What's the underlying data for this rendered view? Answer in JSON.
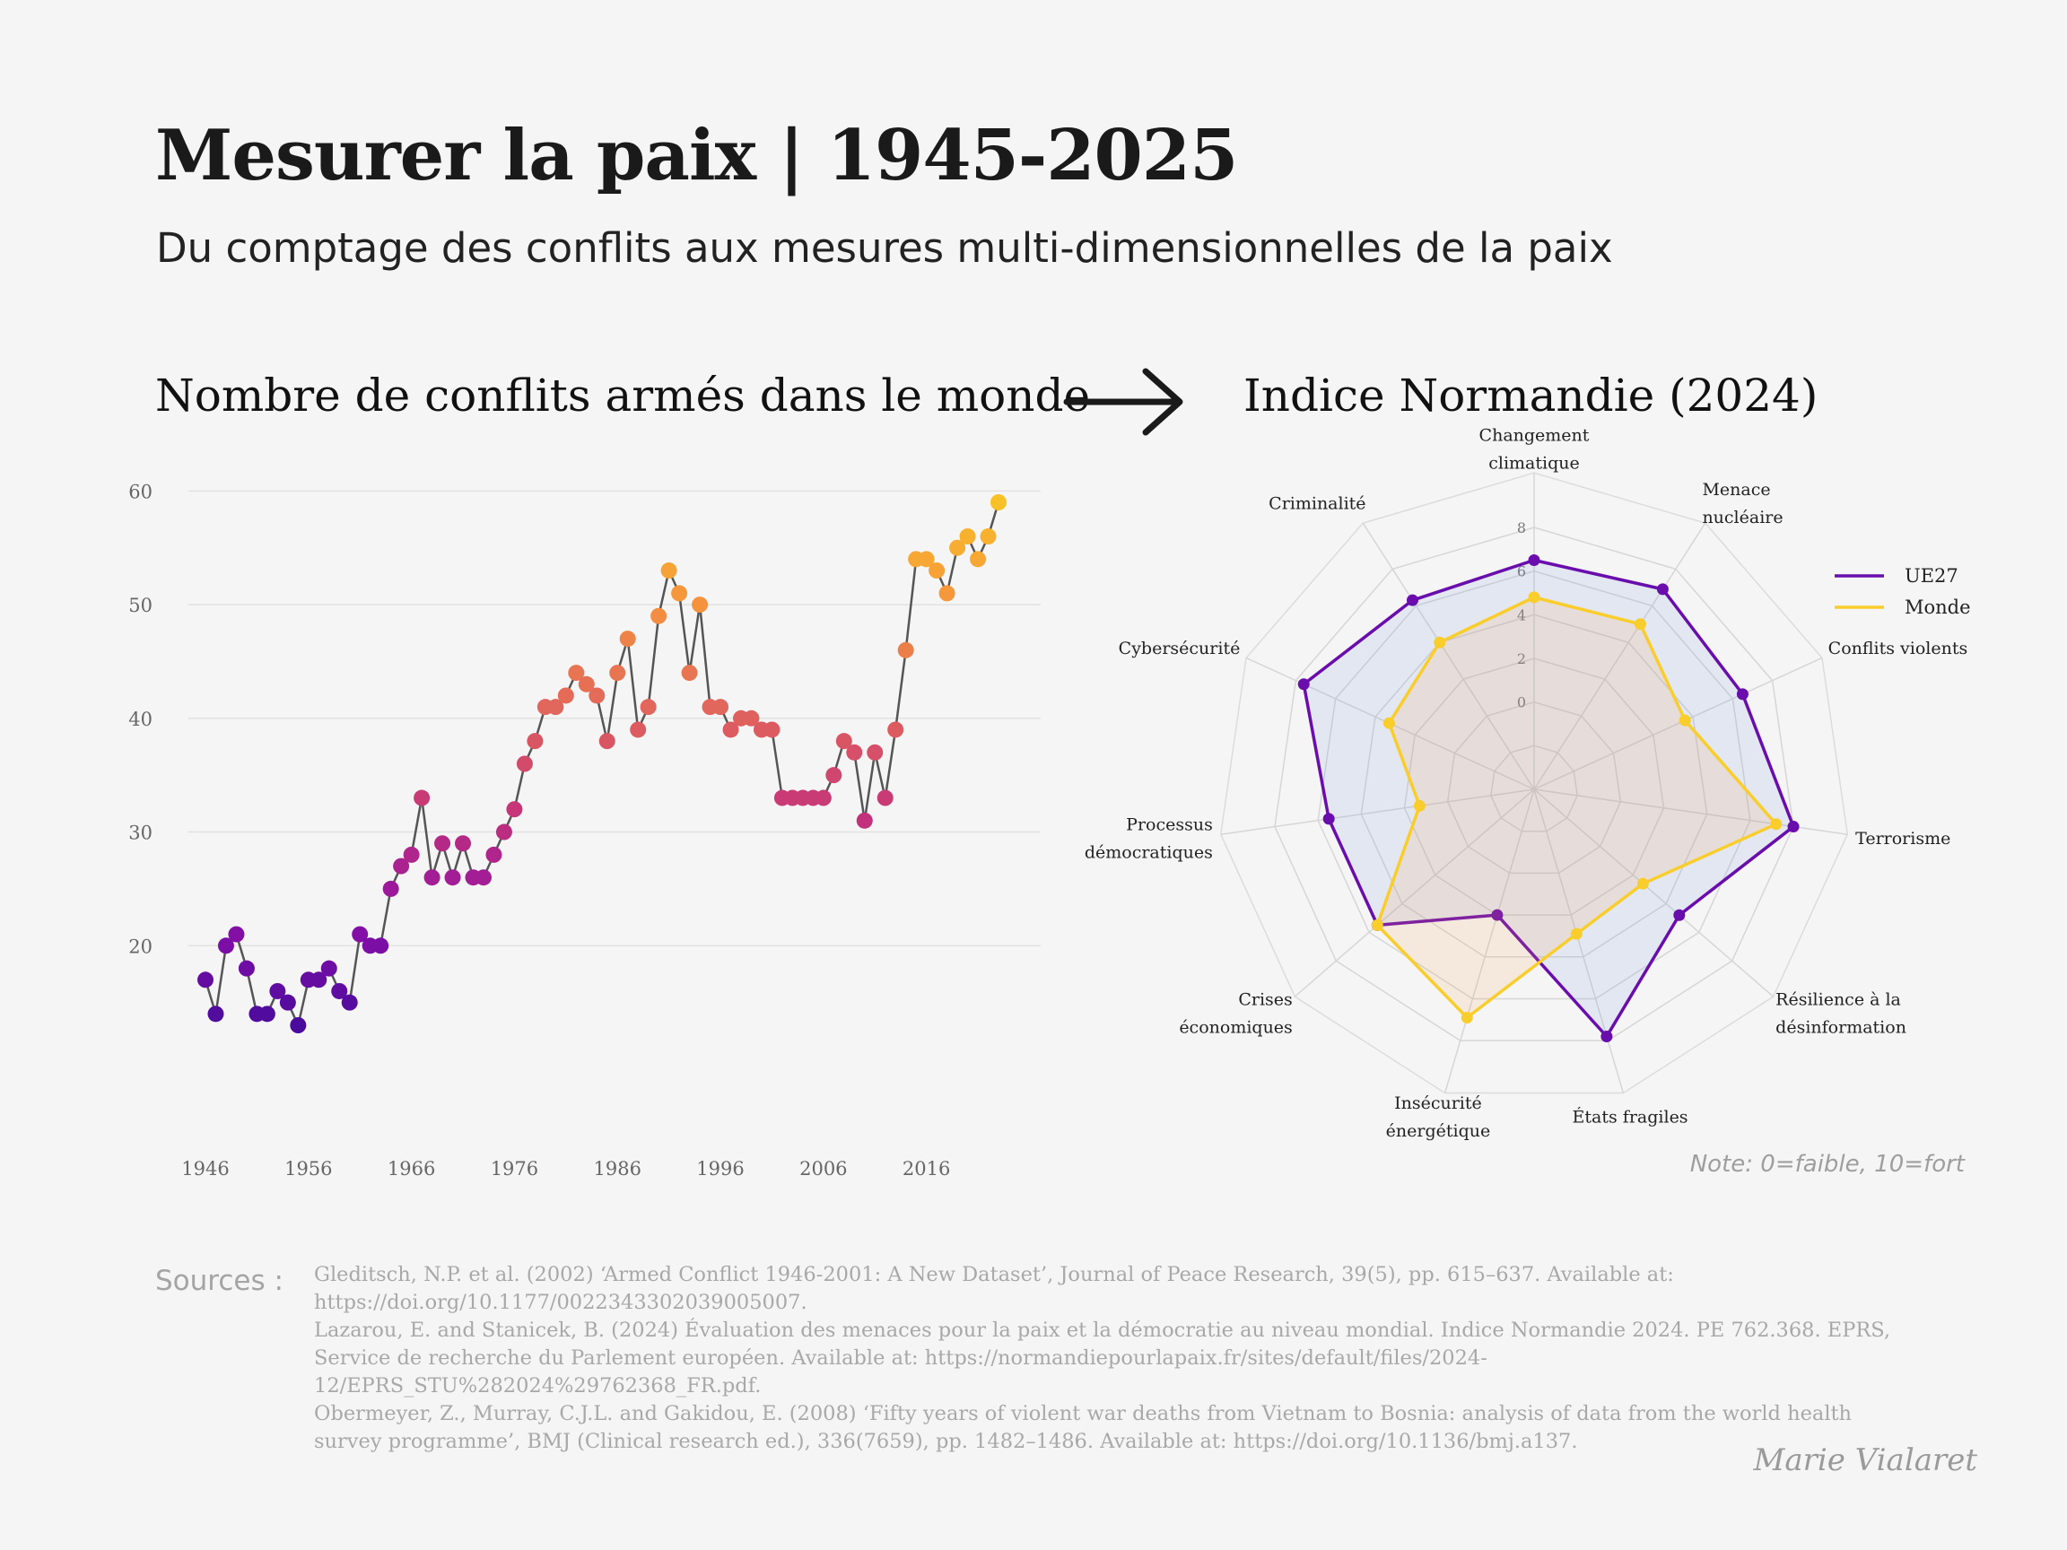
{
  "header": {
    "title": "Mesurer la paix | 1945-2025",
    "subtitle": "Du comptage des conflits aux mesures multi-dimensionnelles de la paix"
  },
  "left_panel": {
    "title": "Nombre de conflits armés dans le monde"
  },
  "right_panel": {
    "title": "Indice Normandie (2024)",
    "note": "Note: 0=faible, 10=fort"
  },
  "arrow_icon": "right-arrow-icon",
  "colors": {
    "background": "#f5f5f5",
    "line": "#555555",
    "gradient": [
      "#4a0a9c",
      "#8b10a8",
      "#c4327a",
      "#e0645c",
      "#f4913e",
      "#f9c128"
    ],
    "ue27": "#6a0dad",
    "monde": "#f9cd2c"
  },
  "chart_data": [
    {
      "type": "line",
      "title": "Nombre de conflits armés dans le monde",
      "xlabel": "",
      "ylabel": "",
      "x": [
        1946,
        1947,
        1948,
        1949,
        1950,
        1951,
        1952,
        1953,
        1954,
        1955,
        1956,
        1957,
        1958,
        1959,
        1960,
        1961,
        1962,
        1963,
        1964,
        1965,
        1966,
        1967,
        1968,
        1969,
        1970,
        1971,
        1972,
        1973,
        1974,
        1975,
        1976,
        1977,
        1978,
        1979,
        1980,
        1981,
        1982,
        1983,
        1984,
        1985,
        1986,
        1987,
        1988,
        1989,
        1990,
        1991,
        1992,
        1993,
        1994,
        1995,
        1996,
        1997,
        1998,
        1999,
        2000,
        2001,
        2002,
        2003,
        2004,
        2005,
        2006,
        2007,
        2008,
        2009,
        2010,
        2011,
        2012,
        2013,
        2014,
        2015,
        2016,
        2017,
        2018,
        2019,
        2020,
        2021,
        2022,
        2023
      ],
      "values": [
        17,
        14,
        20,
        21,
        18,
        14,
        14,
        16,
        15,
        13,
        17,
        17,
        18,
        16,
        15,
        21,
        20,
        20,
        25,
        27,
        28,
        33,
        26,
        29,
        26,
        29,
        26,
        26,
        28,
        30,
        32,
        36,
        38,
        41,
        41,
        42,
        44,
        43,
        42,
        38,
        44,
        47,
        39,
        41,
        49,
        53,
        51,
        44,
        50,
        41,
        41,
        39,
        40,
        40,
        39,
        39,
        33,
        33,
        33,
        33,
        33,
        35,
        38,
        37,
        31,
        37,
        33,
        39,
        46,
        54,
        54,
        53,
        51,
        55,
        56,
        54,
        56,
        59
      ],
      "x_ticks": [
        "1946",
        "1956",
        "1966",
        "1976",
        "1986",
        "1996",
        "2006",
        "2016"
      ],
      "y_ticks": [
        "20",
        "30",
        "40",
        "50",
        "60"
      ],
      "xlim": [
        1944,
        2025
      ],
      "ylim": [
        10,
        60
      ],
      "grid": "horizontal"
    },
    {
      "type": "radar",
      "title": "Indice Normandie (2024)",
      "axes": [
        [
          "Changement",
          "climatique"
        ],
        [
          "Menace",
          "nucléaire"
        ],
        [
          "Conflits violents"
        ],
        [
          "Terrorisme"
        ],
        [
          "Résilience à la",
          "désinformation"
        ],
        [
          "États fragiles"
        ],
        [
          "Insécurité",
          "énergétique"
        ],
        [
          "Crises",
          "économiques"
        ],
        [
          "Processus",
          "démocratiques"
        ],
        [
          "Cybersécurité"
        ],
        [
          "Criminalité"
        ]
      ],
      "r_ticks": [
        "0",
        "2",
        "4",
        "6",
        "8"
      ],
      "rlim": [
        -4,
        8
      ],
      "series": [
        {
          "name": "UE27",
          "values": [
            6.5,
            6.9,
            6.5,
            8.0,
            4.8,
            7.8,
            2.0,
            5.5,
            5.5,
            7.6,
            6.3
          ]
        },
        {
          "name": "Monde",
          "values": [
            4.8,
            5.0,
            3.6,
            7.2,
            2.6,
            2.9,
            6.9,
            5.5,
            1.3,
            3.3,
            4.0
          ]
        }
      ],
      "legend": "top-right",
      "note": "Note: 0=faible, 10=fort"
    }
  ],
  "sources": {
    "label": "Sources :",
    "lines": [
      "Gleditsch, N.P. et al. (2002) ‘Armed Conflict 1946-2001: A New Dataset’, Journal of Peace Research, 39(5), pp. 615–637. Available at: https://doi.org/10.1177/0022343302039005007.",
      "Lazarou, E. and Stanicek, B. (2024) Évaluation des menaces pour la paix et la démocratie au niveau mondial. Indice Normandie 2024. PE 762.368. EPRS, Service de recherche du Parlement européen. Available at: https://normandiepourlapaix.fr/sites/default/files/2024-12/EPRS_STU%282024%29762368_FR.pdf.",
      "Obermeyer, Z., Murray, C.J.L. and Gakidou, E. (2008) ‘Fifty years of violent war deaths from Vietnam to Bosnia: analysis of data from the world health survey programme’, BMJ (Clinical research ed.), 336(7659), pp. 1482–1486. Available at: https://doi.org/10.1136/bmj.a137."
    ]
  },
  "author": "Marie Vialaret"
}
